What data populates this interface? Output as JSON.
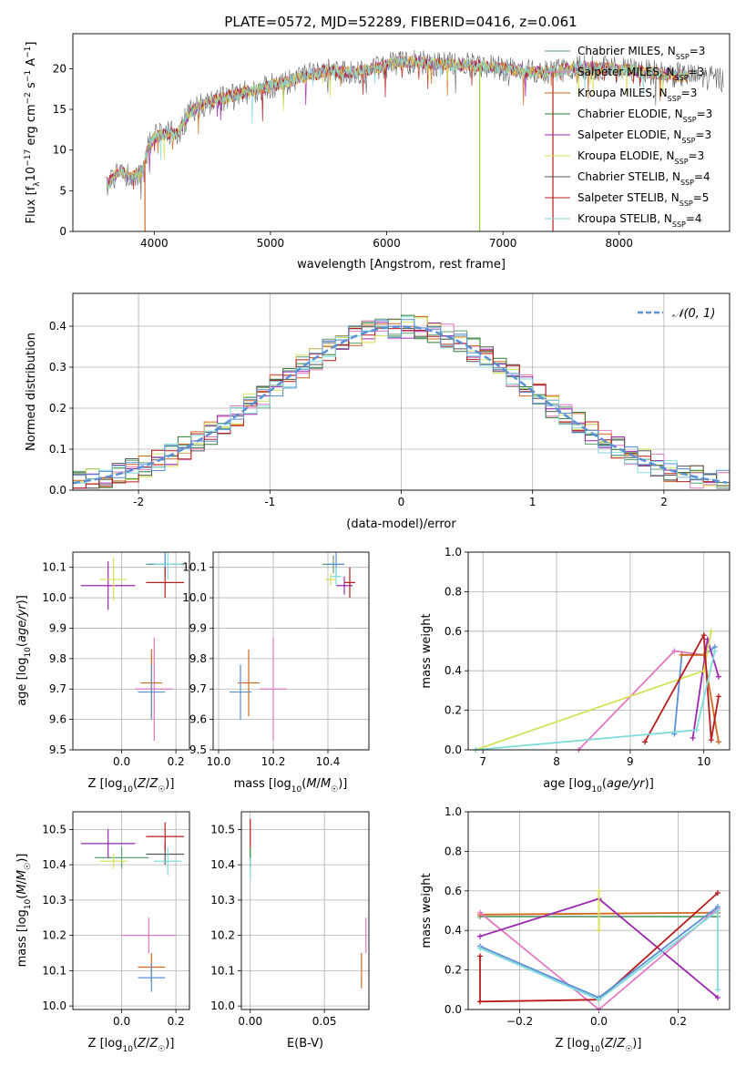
{
  "title": "PLATE=0572, MJD=52289, FIBERID=0416, z=0.061",
  "colors": {
    "cm": "#5f9e6e",
    "sm": "#e377c2",
    "km": "#d2691e",
    "ce": "#2e7d32",
    "se": "#9c27b0",
    "ke": "#d4e157",
    "cs": "#555555",
    "ss": "#b71c1c",
    "ks": "#7fdbda",
    "axis_order_note": ""
  },
  "chart_data": [
    {
      "id": "spectrum",
      "type": "line",
      "xlabel": "wavelength [Angstrom, rest frame]",
      "ylabel": "Flux [f_λ 10^-17 erg cm^-2 s^-1 A^-1]",
      "xlim": [
        3300,
        8950
      ],
      "ylim": [
        0,
        24.3
      ],
      "xticks": [
        4000,
        5000,
        6000,
        7000,
        8000
      ],
      "yticks": [
        0,
        5,
        10,
        15,
        20
      ],
      "legend": "upper right",
      "legend_entries": [
        {
          "pre": "Chabrier MILES, N",
          "post": "=3",
          "sub": "SSP",
          "color": "#5f9e6e"
        },
        {
          "pre": "Salpeter MILES, N",
          "post": "=3",
          "sub": "SSP",
          "color": "#e377c2"
        },
        {
          "pre": "Kroupa MILES, N",
          "post": "=3",
          "sub": "SSP",
          "color": "#d2691e"
        },
        {
          "pre": "Chabrier ELODIE, N",
          "post": "=3",
          "sub": "SSP",
          "color": "#2e7d32"
        },
        {
          "pre": "Salpeter ELODIE, N",
          "post": "=3",
          "sub": "SSP",
          "color": "#9c27b0"
        },
        {
          "pre": "Kroupa ELODIE, N",
          "post": "=3",
          "sub": "SSP",
          "color": "#d4e157"
        },
        {
          "pre": "Chabrier STELIB, N",
          "post": "=4",
          "sub": "SSP",
          "color": "#555555"
        },
        {
          "pre": "Salpeter STELIB, N",
          "post": "=5",
          "sub": "SSP",
          "color": "#b71c1c"
        },
        {
          "pre": "Kroupa STELIB, N",
          "post": "=4",
          "sub": "SSP",
          "color": "#7fdbda"
        }
      ],
      "continuum": {
        "x": [
          3580,
          3700,
          3800,
          3900,
          3950,
          4000,
          4100,
          4200,
          4300,
          4400,
          4500,
          4700,
          4900,
          5100,
          5300,
          5500,
          5700,
          5900,
          6100,
          6300,
          6500,
          6700,
          6900,
          7100,
          7300,
          7500,
          7700,
          7900,
          8100,
          8300,
          8500,
          8700,
          8900
        ],
        "y": [
          5.5,
          7.5,
          6.5,
          7.5,
          10.5,
          11.5,
          12.0,
          12.0,
          14.5,
          15.5,
          16.0,
          16.8,
          17.5,
          18.2,
          19.0,
          19.8,
          19.5,
          20.0,
          20.8,
          20.8,
          20.5,
          20.5,
          20.2,
          19.8,
          19.5,
          19.8,
          20.2,
          20.0,
          19.8,
          19.5,
          19.2,
          19.0,
          18.7
        ]
      },
      "spikes": [
        {
          "x": 3920,
          "ylow": 0,
          "color": "#d2691e"
        },
        {
          "x": 6800,
          "ylow": 0,
          "color": "#9acd32"
        },
        {
          "x": 7430,
          "ylow": 0,
          "color": "#b71c1c"
        }
      ]
    },
    {
      "id": "residual_hist",
      "type": "line",
      "xlabel": "(data-model)/error",
      "ylabel": "Normed distribution",
      "xlim": [
        -2.5,
        2.5
      ],
      "ylim": [
        0,
        0.48
      ],
      "xticks": [
        -2,
        -1,
        0,
        1,
        2
      ],
      "yticks": [
        0.0,
        0.1,
        0.2,
        0.3,
        0.4
      ],
      "ytick_labels": [
        "0.0",
        "0.1",
        "0.2",
        "0.3",
        "0.4"
      ],
      "legend": "upper right",
      "legend_label": "𝒩(0, 1)",
      "gaussian_color": "#5b8fd6",
      "bin_edges_start": -2.5,
      "bin_width": 0.1
    },
    {
      "id": "age_vs_Z",
      "type": "scatter",
      "xlabel": "Z [log10(Z/Z☉)]",
      "ylabel": "age  [log10(age/yr)]",
      "xlim": [
        -0.18,
        0.25
      ],
      "ylim": [
        9.5,
        10.15
      ],
      "xticks": [
        0.0,
        0.2
      ],
      "xtick_labels": [
        "0.0",
        "0.2"
      ],
      "yticks": [
        9.5,
        9.6,
        9.7,
        9.8,
        9.9,
        10.0,
        10.1
      ],
      "ytick_labels": [
        "9.5",
        "9.6",
        "9.7",
        "9.8",
        "9.9",
        "10.0",
        "10.1"
      ],
      "points": [
        {
          "x": 0.16,
          "y": 10.11,
          "xerr": 0.07,
          "yerr": 0.03,
          "c": "#5f9e6e"
        },
        {
          "x": 0.16,
          "y": 10.11,
          "xerr": 0.06,
          "yerr": 0.04,
          "c": "#5b8fd6"
        },
        {
          "x": 0.12,
          "y": 9.7,
          "xerr": 0.07,
          "yerr": 0.17,
          "c": "#e377c2"
        },
        {
          "x": 0.11,
          "y": 9.72,
          "xerr": 0.04,
          "yerr": 0.11,
          "c": "#d2691e"
        },
        {
          "x": 0.11,
          "y": 9.69,
          "xerr": 0.05,
          "yerr": 0.09,
          "c": "#5b8fd6"
        },
        {
          "x": -0.05,
          "y": 10.04,
          "xerr": 0.1,
          "yerr": 0.08,
          "c": "#9c27b0"
        },
        {
          "x": -0.03,
          "y": 10.06,
          "xerr": 0.05,
          "yerr": 0.07,
          "c": "#d4e157"
        },
        {
          "x": 0.16,
          "y": 10.05,
          "xerr": 0.07,
          "yerr": 0.05,
          "c": "#b71c1c"
        },
        {
          "x": 0.17,
          "y": 10.11,
          "xerr": 0.05,
          "yerr": 0.05,
          "c": "#7fdbda"
        }
      ]
    },
    {
      "id": "age_vs_mass",
      "type": "scatter",
      "xlabel": "mass [log10(M/M☉)]",
      "ylabel": "",
      "xlim": [
        9.98,
        10.55
      ],
      "ylim": [
        9.5,
        10.15
      ],
      "xticks": [
        10.0,
        10.2,
        10.4
      ],
      "xtick_labels": [
        "10.0",
        "10.2",
        "10.4"
      ],
      "yticks": [
        9.5,
        9.6,
        9.7,
        9.8,
        9.9,
        10.0,
        10.1
      ],
      "ytick_labels": [
        "9.5",
        "9.6",
        "9.7",
        "9.8",
        "9.9",
        "10.0",
        "10.1"
      ],
      "points": [
        {
          "x": 10.42,
          "y": 10.11,
          "xerr": 0.04,
          "yerr": 0.03,
          "c": "#5f9e6e"
        },
        {
          "x": 10.43,
          "y": 10.11,
          "xerr": 0.03,
          "yerr": 0.04,
          "c": "#5b8fd6"
        },
        {
          "x": 10.2,
          "y": 9.7,
          "xerr": 0.05,
          "yerr": 0.17,
          "c": "#e377c2"
        },
        {
          "x": 10.11,
          "y": 9.72,
          "xerr": 0.04,
          "yerr": 0.11,
          "c": "#d2691e"
        },
        {
          "x": 10.08,
          "y": 9.69,
          "xerr": 0.04,
          "yerr": 0.09,
          "c": "#5b8fd6"
        },
        {
          "x": 10.46,
          "y": 10.04,
          "xerr": 0.03,
          "yerr": 0.03,
          "c": "#9c27b0"
        },
        {
          "x": 10.41,
          "y": 10.06,
          "xerr": 0.02,
          "yerr": 0.02,
          "c": "#d4e157"
        },
        {
          "x": 10.48,
          "y": 10.05,
          "xerr": 0.02,
          "yerr": 0.05,
          "c": "#b71c1c"
        },
        {
          "x": 10.43,
          "y": 10.07,
          "xerr": 0.02,
          "yerr": 0.03,
          "c": "#7fdbda"
        }
      ]
    },
    {
      "id": "massweight_vs_age",
      "type": "line",
      "xlabel": "age  [log10(age/yr)]",
      "ylabel": "mass weight",
      "xlim": [
        6.8,
        10.35
      ],
      "ylim": [
        0,
        1.0
      ],
      "xticks": [
        7,
        8,
        9,
        10
      ],
      "yticks": [
        0.0,
        0.2,
        0.4,
        0.6,
        0.8,
        1.0
      ],
      "ytick_labels": [
        "0.0",
        "0.2",
        "0.4",
        "0.6",
        "0.8",
        "1.0"
      ],
      "series": [
        {
          "c": "#e377c2",
          "x": [
            8.3,
            9.6,
            10.0
          ],
          "y": [
            0.0,
            0.5,
            0.48
          ]
        },
        {
          "c": "#5b8fd6",
          "x": [
            9.6,
            9.7,
            10.0,
            10.15
          ],
          "y": [
            0.08,
            0.48,
            0.48,
            0.52
          ]
        },
        {
          "c": "#d2691e",
          "x": [
            9.7,
            10.0,
            10.2
          ],
          "y": [
            0.48,
            0.48,
            0.04
          ]
        },
        {
          "c": "#9c27b0",
          "x": [
            9.85,
            10.05,
            10.2
          ],
          "y": [
            0.06,
            0.56,
            0.37
          ]
        },
        {
          "c": "#d4e157",
          "x": [
            6.9,
            10.0,
            10.1
          ],
          "y": [
            0.0,
            0.4,
            0.6
          ]
        },
        {
          "c": "#b71c1c",
          "x": [
            9.2,
            10.0,
            10.1,
            10.2
          ],
          "y": [
            0.04,
            0.58,
            0.05,
            0.27
          ]
        },
        {
          "c": "#7fdbda",
          "x": [
            6.9,
            9.9,
            10.15
          ],
          "y": [
            0.0,
            0.1,
            0.5
          ]
        }
      ]
    },
    {
      "id": "mass_vs_Z",
      "type": "scatter",
      "xlabel": "Z [log10(Z/Z☉)]",
      "ylabel": "mass [log10(M/M☉)]",
      "xlim": [
        -0.18,
        0.25
      ],
      "ylim": [
        9.99,
        10.55
      ],
      "xticks": [
        0.0,
        0.2
      ],
      "xtick_labels": [
        "0.0",
        "0.2"
      ],
      "yticks": [
        10.0,
        10.1,
        10.2,
        10.3,
        10.4,
        10.5
      ],
      "ytick_labels": [
        "10.0",
        "10.1",
        "10.2",
        "10.3",
        "10.4",
        "10.5"
      ],
      "points": [
        {
          "x": 0.0,
          "y": 10.42,
          "xerr": 0.1,
          "yerr": 0.03,
          "c": "#5f9e6e"
        },
        {
          "x": 0.16,
          "y": 10.43,
          "xerr": 0.07,
          "yerr": 0.03,
          "c": "#555555"
        },
        {
          "x": 0.1,
          "y": 10.2,
          "xerr": 0.1,
          "yerr": 0.05,
          "c": "#e377c2"
        },
        {
          "x": 0.11,
          "y": 10.11,
          "xerr": 0.05,
          "yerr": 0.04,
          "c": "#d2691e"
        },
        {
          "x": 0.11,
          "y": 10.08,
          "xerr": 0.05,
          "yerr": 0.04,
          "c": "#5b8fd6"
        },
        {
          "x": -0.05,
          "y": 10.46,
          "xerr": 0.1,
          "yerr": 0.04,
          "c": "#9c27b0"
        },
        {
          "x": -0.03,
          "y": 10.41,
          "xerr": 0.05,
          "yerr": 0.02,
          "c": "#d4e157"
        },
        {
          "x": 0.16,
          "y": 10.48,
          "xerr": 0.07,
          "yerr": 0.04,
          "c": "#b71c1c"
        },
        {
          "x": 0.17,
          "y": 10.41,
          "xerr": 0.05,
          "yerr": 0.04,
          "c": "#7fdbda"
        }
      ]
    },
    {
      "id": "mass_vs_EBV",
      "type": "scatter",
      "xlabel": "E(B-V)",
      "ylabel": "",
      "xlim": [
        -0.006,
        0.08
      ],
      "ylim": [
        9.99,
        10.55
      ],
      "xticks": [
        0.0,
        0.05
      ],
      "xtick_labels": [
        "0.00",
        "0.05"
      ],
      "yticks": [
        10.0,
        10.1,
        10.2,
        10.3,
        10.4,
        10.5
      ],
      "ytick_labels": [
        "10.0",
        "10.1",
        "10.2",
        "10.3",
        "10.4",
        "10.5"
      ],
      "points": [
        {
          "x": 0.0,
          "y": 10.49,
          "xerr": 0.0,
          "yerr": 0.04,
          "c": "#b71c1c"
        },
        {
          "x": 0.0,
          "y": 10.42,
          "xerr": 0.0,
          "yerr": 0.03,
          "c": "#2e7d32"
        },
        {
          "x": 0.0,
          "y": 10.39,
          "xerr": 0.0,
          "yerr": 0.03,
          "c": "#7fdbda"
        },
        {
          "x": 0.078,
          "y": 10.2,
          "xerr": 0.0,
          "yerr": 0.05,
          "c": "#e377c2"
        },
        {
          "x": 0.075,
          "y": 10.1,
          "xerr": 0.0,
          "yerr": 0.05,
          "c": "#d2691e"
        }
      ]
    },
    {
      "id": "massweight_vs_Z",
      "type": "line",
      "xlabel": "Z [log10(Z/Z☉)]",
      "ylabel": "mass weight",
      "xlim": [
        -0.33,
        0.33
      ],
      "ylim": [
        0,
        1.0
      ],
      "xticks": [
        -0.2,
        0.0,
        0.2
      ],
      "xtick_labels": [
        "−0.2",
        "0.0",
        "0.2"
      ],
      "yticks": [
        0.0,
        0.2,
        0.4,
        0.6,
        0.8,
        1.0
      ],
      "ytick_labels": [
        "0.0",
        "0.2",
        "0.4",
        "0.6",
        "0.8",
        "1.0"
      ],
      "series": [
        {
          "c": "#5f9e6e",
          "x": [
            -0.3,
            0.3
          ],
          "y": [
            0.47,
            0.47
          ]
        },
        {
          "c": "#d2691e",
          "x": [
            -0.3,
            0.3
          ],
          "y": [
            0.48,
            0.49
          ]
        },
        {
          "c": "#e377c2",
          "x": [
            -0.3,
            0.0,
            0.3
          ],
          "y": [
            0.49,
            0.0,
            0.51
          ]
        },
        {
          "c": "#9c27b0",
          "x": [
            -0.3,
            0.0,
            0.3
          ],
          "y": [
            0.37,
            0.56,
            0.06
          ]
        },
        {
          "c": "#d4e157",
          "x": [
            0.0,
            0.0
          ],
          "y": [
            0.4,
            0.6
          ]
        },
        {
          "c": "#b71c1c",
          "x": [
            -0.3,
            -0.3,
            0.0,
            0.3
          ],
          "y": [
            0.27,
            0.04,
            0.05,
            0.59
          ]
        },
        {
          "c": "#5b8fd6",
          "x": [
            -0.3,
            0.0,
            0.3
          ],
          "y": [
            0.32,
            0.06,
            0.52
          ]
        },
        {
          "c": "#7fdbda",
          "x": [
            -0.3,
            0.0,
            0.3,
            0.3
          ],
          "y": [
            0.31,
            0.05,
            0.5,
            0.1
          ]
        }
      ]
    }
  ]
}
